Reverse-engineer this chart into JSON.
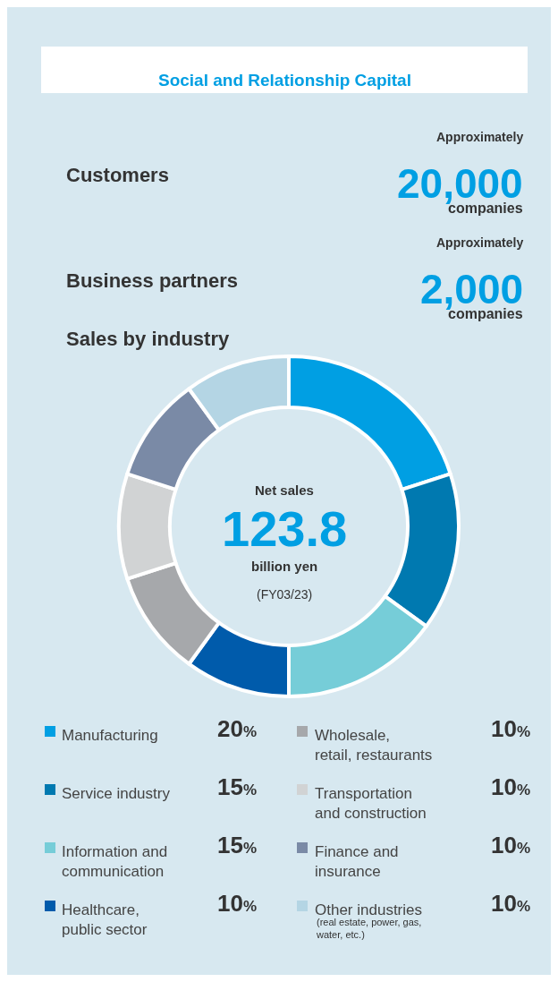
{
  "chart_data": {
    "type": "donut",
    "title": "Social and Relationship Capital",
    "categories": [
      "Manufacturing",
      "Service industry",
      "Information and\ncommunication",
      "Healthcare,\npublic sector",
      "Wholesale,\nretail, restaurants",
      "Transportation\nand construction",
      "Finance and\ninsurance",
      "Other industries"
    ],
    "values": [
      20,
      15,
      15,
      10,
      10,
      10,
      10,
      10
    ],
    "value_labels": [
      "20%",
      "15%",
      "15%",
      "10%",
      "10%",
      "10%",
      "10%",
      "10%"
    ],
    "colors": [
      "#009fe3",
      "#0079b0",
      "#76cdd8",
      "#005bab",
      "#a6a8ab",
      "#d1d3d4",
      "#7a8aa6",
      "#b4d5e4"
    ],
    "legend": "bottom",
    "annotations": [
      "Customers",
      "Approximately",
      "20,000",
      "companies",
      "Business partners",
      "Approximately",
      "2,000",
      "companies",
      "Sales by industry",
      "Net sales",
      "123.8",
      "billion yen",
      "(FY03/23)",
      "(real estate, power, gas,\nwater, etc.)"
    ]
  }
}
